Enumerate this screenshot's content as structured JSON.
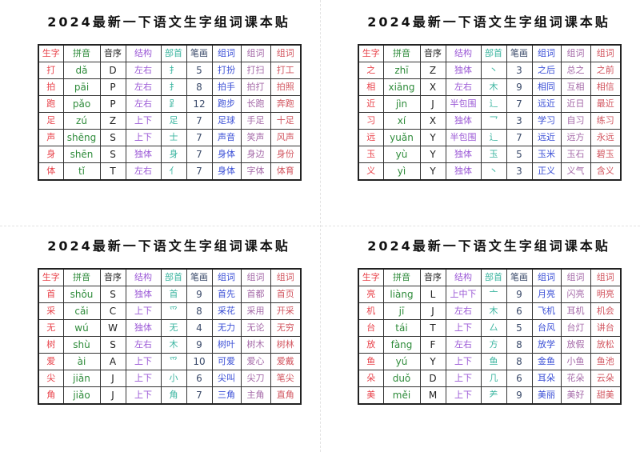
{
  "page": {
    "title": "2024最新一下语文生字组词课本贴"
  },
  "columns": [
    "生字",
    "拼音",
    "音序",
    "结构",
    "部首",
    "笔画",
    "组词",
    "组词",
    "组词"
  ],
  "colors": {
    "char": "#e8424a",
    "pinyin": "#2e8b3a",
    "sequence": "#222222",
    "structure": "#9b59d6",
    "radical": "#3bb5a0",
    "strokes": "#3a4a6a",
    "word1": "#3b4fd6",
    "word2": "#a56aa8",
    "word3": "#d2555f"
  },
  "cards": [
    {
      "title": "2024最新一下语文生字组词课本贴",
      "rows": [
        {
          "char": "打",
          "pinyin": "dǎ",
          "seq": "D",
          "structure": "左右",
          "radical": "扌",
          "strokes": "5",
          "w1": "打扮",
          "w2": "打扫",
          "w3": "打工"
        },
        {
          "char": "拍",
          "pinyin": "pāi",
          "seq": "P",
          "structure": "左右",
          "radical": "扌",
          "strokes": "8",
          "w1": "拍手",
          "w2": "拍打",
          "w3": "拍照"
        },
        {
          "char": "跑",
          "pinyin": "pǎo",
          "seq": "P",
          "structure": "左右",
          "radical": "𧾷",
          "strokes": "12",
          "w1": "跑步",
          "w2": "长跑",
          "w3": "奔跑"
        },
        {
          "char": "足",
          "pinyin": "zú",
          "seq": "Z",
          "structure": "上下",
          "radical": "足",
          "strokes": "7",
          "w1": "足球",
          "w2": "手足",
          "w3": "十足"
        },
        {
          "char": "声",
          "pinyin": "shēng",
          "seq": "S",
          "structure": "上下",
          "radical": "士",
          "strokes": "7",
          "w1": "声音",
          "w2": "笑声",
          "w3": "风声"
        },
        {
          "char": "身",
          "pinyin": "shēn",
          "seq": "S",
          "structure": "独体",
          "radical": "身",
          "strokes": "7",
          "w1": "身体",
          "w2": "身边",
          "w3": "身份"
        },
        {
          "char": "体",
          "pinyin": "tǐ",
          "seq": "T",
          "structure": "左右",
          "radical": "亻",
          "strokes": "7",
          "w1": "身体",
          "w2": "字体",
          "w3": "体育"
        }
      ]
    },
    {
      "title": "2024最新一下语文生字组词课本贴",
      "rows": [
        {
          "char": "之",
          "pinyin": "zhī",
          "seq": "Z",
          "structure": "独体",
          "radical": "丶",
          "strokes": "3",
          "w1": "之后",
          "w2": "总之",
          "w3": "之前"
        },
        {
          "char": "相",
          "pinyin": "xiāng",
          "seq": "X",
          "structure": "左右",
          "radical": "木",
          "strokes": "9",
          "w1": "相同",
          "w2": "互相",
          "w3": "相信"
        },
        {
          "char": "近",
          "pinyin": "jìn",
          "seq": "J",
          "structure": "半包围",
          "radical": "辶",
          "strokes": "7",
          "w1": "远近",
          "w2": "近日",
          "w3": "最近"
        },
        {
          "char": "习",
          "pinyin": "xí",
          "seq": "X",
          "structure": "独体",
          "radical": "乛",
          "strokes": "3",
          "w1": "学习",
          "w2": "自习",
          "w3": "练习"
        },
        {
          "char": "远",
          "pinyin": "yuǎn",
          "seq": "Y",
          "structure": "半包围",
          "radical": "辶",
          "strokes": "7",
          "w1": "远近",
          "w2": "远方",
          "w3": "永远"
        },
        {
          "char": "玉",
          "pinyin": "yù",
          "seq": "Y",
          "structure": "独体",
          "radical": "玉",
          "strokes": "5",
          "w1": "玉米",
          "w2": "玉石",
          "w3": "碧玉"
        },
        {
          "char": "义",
          "pinyin": "yì",
          "seq": "Y",
          "structure": "独体",
          "radical": "丶",
          "strokes": "3",
          "w1": "正义",
          "w2": "义气",
          "w3": "含义"
        }
      ]
    },
    {
      "title": "2024最新一下语文生字组词课本贴",
      "rows": [
        {
          "char": "首",
          "pinyin": "shǒu",
          "seq": "S",
          "structure": "独体",
          "radical": "首",
          "strokes": "9",
          "w1": "首先",
          "w2": "首都",
          "w3": "首页"
        },
        {
          "char": "采",
          "pinyin": "cǎi",
          "seq": "C",
          "structure": "上下",
          "radical": "爫",
          "strokes": "8",
          "w1": "采花",
          "w2": "采用",
          "w3": "开采"
        },
        {
          "char": "无",
          "pinyin": "wú",
          "seq": "W",
          "structure": "独体",
          "radical": "无",
          "strokes": "4",
          "w1": "无力",
          "w2": "无论",
          "w3": "无穷"
        },
        {
          "char": "树",
          "pinyin": "shù",
          "seq": "S",
          "structure": "左右",
          "radical": "木",
          "strokes": "9",
          "w1": "树叶",
          "w2": "树木",
          "w3": "树林"
        },
        {
          "char": "爱",
          "pinyin": "ài",
          "seq": "A",
          "structure": "上下",
          "radical": "爫",
          "strokes": "10",
          "w1": "可爱",
          "w2": "爱心",
          "w3": "爱戴"
        },
        {
          "char": "尖",
          "pinyin": "jiān",
          "seq": "J",
          "structure": "上下",
          "radical": "小",
          "strokes": "6",
          "w1": "尖叫",
          "w2": "尖刀",
          "w3": "笔尖"
        },
        {
          "char": "角",
          "pinyin": "jiǎo",
          "seq": "J",
          "structure": "上下",
          "radical": "角",
          "strokes": "7",
          "w1": "三角",
          "w2": "主角",
          "w3": "直角"
        }
      ]
    },
    {
      "title": "2024最新一下语文生字组词课本贴",
      "rows": [
        {
          "char": "亮",
          "pinyin": "liàng",
          "seq": "L",
          "structure": "上中下",
          "radical": "亠",
          "strokes": "9",
          "w1": "月亮",
          "w2": "闪亮",
          "w3": "明亮"
        },
        {
          "char": "机",
          "pinyin": "jī",
          "seq": "J",
          "structure": "左右",
          "radical": "木",
          "strokes": "6",
          "w1": "飞机",
          "w2": "耳机",
          "w3": "机会"
        },
        {
          "char": "台",
          "pinyin": "tái",
          "seq": "T",
          "structure": "上下",
          "radical": "厶",
          "strokes": "5",
          "w1": "台风",
          "w2": "台灯",
          "w3": "讲台"
        },
        {
          "char": "放",
          "pinyin": "fàng",
          "seq": "F",
          "structure": "左右",
          "radical": "方",
          "strokes": "8",
          "w1": "放学",
          "w2": "放假",
          "w3": "放松"
        },
        {
          "char": "鱼",
          "pinyin": "yú",
          "seq": "Y",
          "structure": "上下",
          "radical": "鱼",
          "strokes": "8",
          "w1": "金鱼",
          "w2": "小鱼",
          "w3": "鱼池"
        },
        {
          "char": "朵",
          "pinyin": "duǒ",
          "seq": "D",
          "structure": "上下",
          "radical": "几",
          "strokes": "6",
          "w1": "耳朵",
          "w2": "花朵",
          "w3": "云朵"
        },
        {
          "char": "美",
          "pinyin": "měi",
          "seq": "M",
          "structure": "上下",
          "radical": "⺶",
          "strokes": "9",
          "w1": "美丽",
          "w2": "美好",
          "w3": "甜美"
        }
      ]
    }
  ]
}
